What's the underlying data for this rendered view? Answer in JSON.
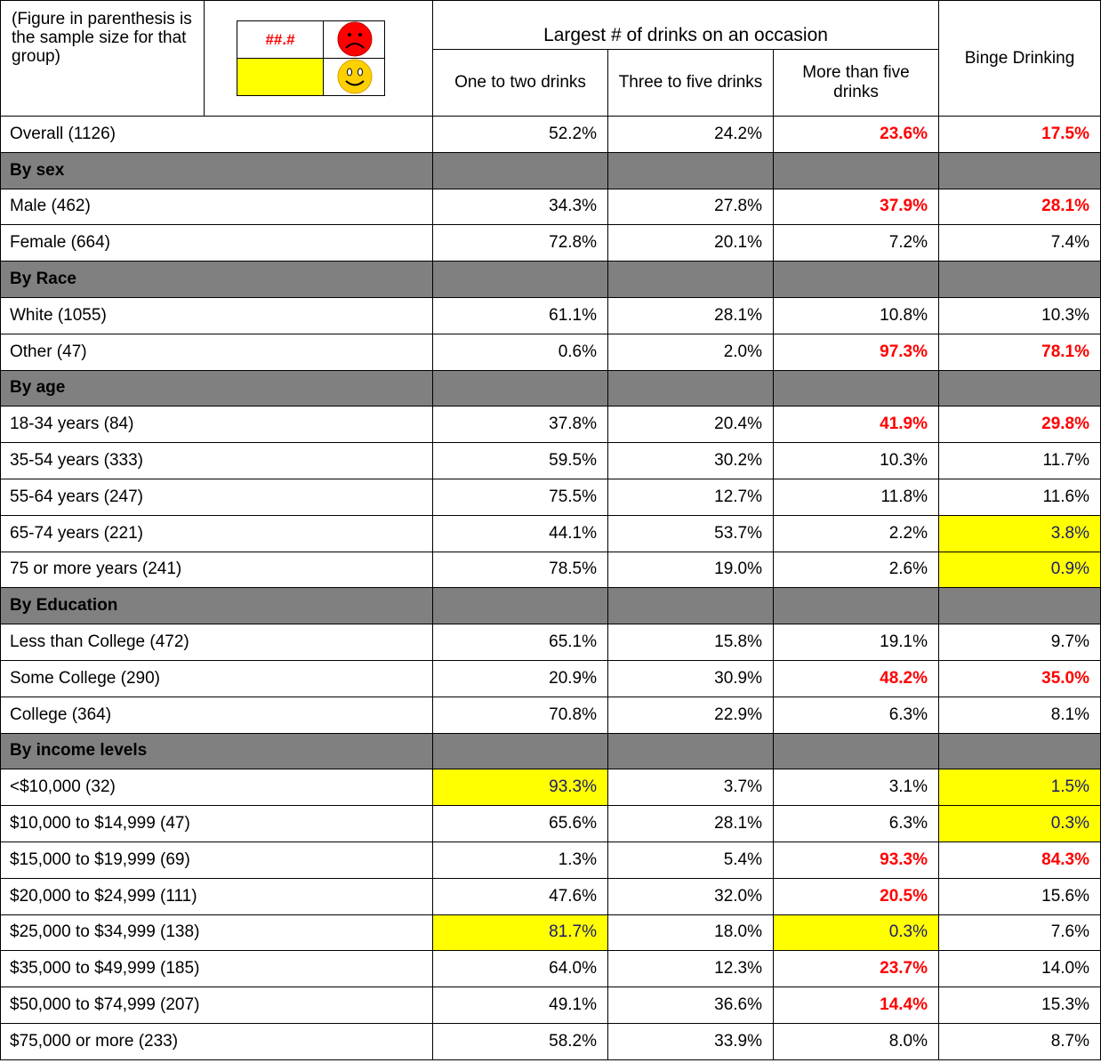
{
  "header": {
    "note": "(Figure in parenthesis is the sample size for that group)",
    "legend_sample": "##.#",
    "group_title": "Largest # of drinks on an occasion",
    "columns": [
      "One to two drinks",
      "Three to five drinks",
      "More than five drinks"
    ],
    "last_column": "Binge Drinking"
  },
  "rows": [
    {
      "label": "Overall (1126)",
      "values": [
        "52.2%",
        "24.2%",
        "23.6%",
        "17.5%"
      ],
      "highlight": [
        null,
        null,
        "red",
        "red"
      ]
    },
    {
      "label": "By sex",
      "group": true
    },
    {
      "label": "Male (462)",
      "values": [
        "34.3%",
        "27.8%",
        "37.9%",
        "28.1%"
      ],
      "highlight": [
        null,
        null,
        "red",
        "red"
      ]
    },
    {
      "label": "Female (664)",
      "values": [
        "72.8%",
        "20.1%",
        "7.2%",
        "7.4%"
      ]
    },
    {
      "label": "By Race",
      "group": true
    },
    {
      "label": "White (1055)",
      "values": [
        "61.1%",
        "28.1%",
        "10.8%",
        "10.3%"
      ]
    },
    {
      "label": "Other (47)",
      "values": [
        "0.6%",
        "2.0%",
        "97.3%",
        "78.1%"
      ],
      "highlight": [
        null,
        null,
        "red",
        "red"
      ]
    },
    {
      "label": "By age",
      "group": true
    },
    {
      "label": "18-34 years (84)",
      "values": [
        "37.8%",
        "20.4%",
        "41.9%",
        "29.8%"
      ],
      "highlight": [
        null,
        null,
        "red",
        "red"
      ]
    },
    {
      "label": "35-54 years (333)",
      "values": [
        "59.5%",
        "30.2%",
        "10.3%",
        "11.7%"
      ]
    },
    {
      "label": "55-64 years (247)",
      "values": [
        "75.5%",
        "12.7%",
        "11.8%",
        "11.6%"
      ]
    },
    {
      "label": "65-74 years (221)",
      "values": [
        "44.1%",
        "53.7%",
        "2.2%",
        "3.8%"
      ],
      "highlight": [
        null,
        null,
        null,
        "yellow"
      ]
    },
    {
      "label": "75 or more years (241)",
      "values": [
        "78.5%",
        "19.0%",
        "2.6%",
        "0.9%"
      ],
      "highlight": [
        null,
        null,
        null,
        "yellow"
      ]
    },
    {
      "label": "By Education",
      "group": true
    },
    {
      "label": "Less than College (472)",
      "values": [
        "65.1%",
        "15.8%",
        "19.1%",
        "9.7%"
      ]
    },
    {
      "label": "Some College (290)",
      "values": [
        "20.9%",
        "30.9%",
        "48.2%",
        "35.0%"
      ],
      "highlight": [
        null,
        null,
        "red",
        "red"
      ]
    },
    {
      "label": "College (364)",
      "values": [
        "70.8%",
        "22.9%",
        "6.3%",
        "8.1%"
      ]
    },
    {
      "label": "By income levels",
      "group": true
    },
    {
      "label": "<$10,000 (32)",
      "values": [
        "93.3%",
        "3.7%",
        "3.1%",
        "1.5%"
      ],
      "highlight": [
        "yellow",
        null,
        null,
        "yellow"
      ]
    },
    {
      "label": "$10,000 to $14,999 (47)",
      "values": [
        "65.6%",
        "28.1%",
        "6.3%",
        "0.3%"
      ],
      "highlight": [
        null,
        null,
        null,
        "yellow"
      ]
    },
    {
      "label": "$15,000 to $19,999 (69)",
      "values": [
        "1.3%",
        "5.4%",
        "93.3%",
        "84.3%"
      ],
      "highlight": [
        null,
        null,
        "red",
        "red"
      ]
    },
    {
      "label": "$20,000 to $24,999 (111)",
      "values": [
        "47.6%",
        "32.0%",
        "20.5%",
        "15.6%"
      ],
      "highlight": [
        null,
        null,
        "red",
        null
      ]
    },
    {
      "label": "$25,000 to $34,999 (138)",
      "values": [
        "81.7%",
        "18.0%",
        "0.3%",
        "7.6%"
      ],
      "highlight": [
        "yellow",
        null,
        "yellow",
        null
      ]
    },
    {
      "label": "$35,000 to $49,999 (185)",
      "values": [
        "64.0%",
        "12.3%",
        "23.7%",
        "14.0%"
      ],
      "highlight": [
        null,
        null,
        "red",
        null
      ]
    },
    {
      "label": "$50,000 to $74,999 (207)",
      "values": [
        "49.1%",
        "36.6%",
        "14.4%",
        "15.3%"
      ],
      "highlight": [
        null,
        null,
        "red",
        null
      ]
    },
    {
      "label": "$75,000 or more (233)",
      "values": [
        "58.2%",
        "33.9%",
        "8.0%",
        "8.7%"
      ]
    }
  ]
}
